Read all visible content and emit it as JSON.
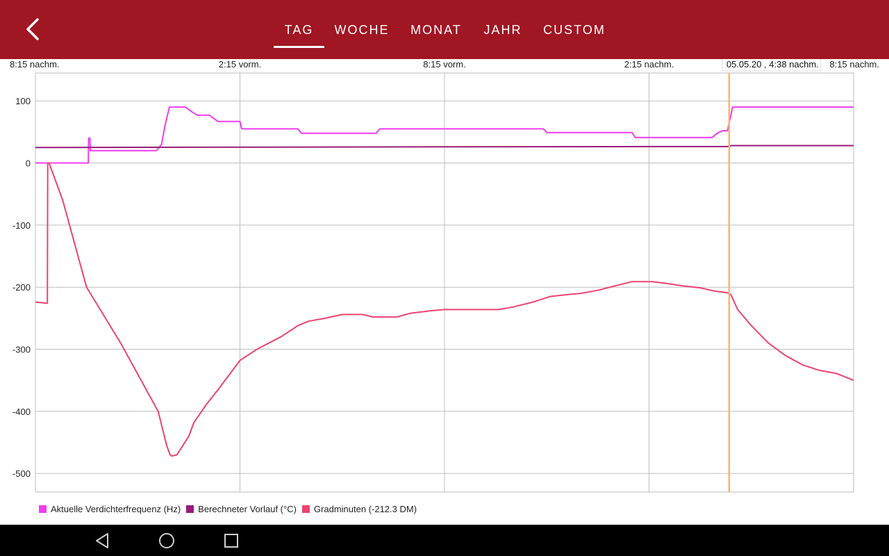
{
  "app_bar": {
    "back_icon": "chevron-left-icon",
    "tabs": [
      {
        "label": "TAG",
        "active": true
      },
      {
        "label": "WOCHE",
        "active": false
      },
      {
        "label": "MONAT",
        "active": false
      },
      {
        "label": "JAHR",
        "active": false
      },
      {
        "label": "CUSTOM",
        "active": false
      }
    ]
  },
  "colors": {
    "appbar": "#a01622",
    "series_frequency": "#f03cf0",
    "series_vorlauf": "#9b1a7a",
    "series_gradminuten": "#ec4370",
    "cursor": "#ffb366",
    "grid": "#bdbdbd"
  },
  "chart_data": {
    "type": "line",
    "x_ticks": [
      "8:15 nachm.",
      "2:15 vorm.",
      "8:15 vorm.",
      "2:15 nachm.",
      "8:15 nachm."
    ],
    "x_range_hours": [
      0,
      24
    ],
    "ylim": [
      -530,
      145
    ],
    "y_ticks": [
      100,
      0,
      -100,
      -200,
      -300,
      -400,
      -500
    ],
    "grid": true,
    "legend_position": "bottom-left",
    "cursor": {
      "x": 20.35,
      "label": "05.05.20 , 4:38 nachm."
    },
    "series": [
      {
        "name": "Aktuelle Verdichterfrequenz (Hz)",
        "color": "#f03cf0",
        "points": [
          [
            0,
            0
          ],
          [
            1.55,
            0
          ],
          [
            1.56,
            40
          ],
          [
            1.6,
            40
          ],
          [
            1.61,
            20
          ],
          [
            3.55,
            20
          ],
          [
            3.7,
            30
          ],
          [
            3.8,
            60
          ],
          [
            3.93,
            90
          ],
          [
            4.4,
            90
          ],
          [
            4.6,
            82
          ],
          [
            4.75,
            77
          ],
          [
            5.1,
            77
          ],
          [
            5.35,
            67
          ],
          [
            6,
            67
          ],
          [
            6.05,
            55
          ],
          [
            7.7,
            55
          ],
          [
            7.8,
            48
          ],
          [
            10,
            48
          ],
          [
            10.1,
            55
          ],
          [
            14.9,
            55
          ],
          [
            15,
            49
          ],
          [
            17.5,
            49
          ],
          [
            17.6,
            41
          ],
          [
            19.85,
            41
          ],
          [
            20,
            48
          ],
          [
            20.15,
            52
          ],
          [
            20.3,
            52
          ],
          [
            20.45,
            90
          ],
          [
            24,
            90
          ]
        ]
      },
      {
        "name": "Berechneter Vorlauf (°C)",
        "color": "#9b1a7a",
        "points": [
          [
            0,
            25
          ],
          [
            6,
            25.5
          ],
          [
            12,
            26
          ],
          [
            18,
            26.5
          ],
          [
            20.3,
            26.5
          ],
          [
            20.4,
            28
          ],
          [
            24,
            28
          ]
        ]
      },
      {
        "name": "Gradminuten (-212.3 DM)",
        "color": "#ec4370",
        "points": [
          [
            0,
            -224
          ],
          [
            0.35,
            -226
          ],
          [
            0.36,
            0
          ],
          [
            0.4,
            0
          ],
          [
            0.8,
            -60
          ],
          [
            1.5,
            -200
          ],
          [
            2.5,
            -290
          ],
          [
            3.6,
            -400
          ],
          [
            3.85,
            -455
          ],
          [
            3.95,
            -470
          ],
          [
            4,
            -472
          ],
          [
            4.15,
            -470
          ],
          [
            4.5,
            -440
          ],
          [
            4.65,
            -418
          ],
          [
            5,
            -390
          ],
          [
            5.4,
            -362
          ],
          [
            6,
            -318
          ],
          [
            6.5,
            -300
          ],
          [
            7.2,
            -280
          ],
          [
            7.7,
            -262
          ],
          [
            8,
            -255
          ],
          [
            8.5,
            -250
          ],
          [
            9,
            -244
          ],
          [
            9.6,
            -244
          ],
          [
            9.9,
            -248
          ],
          [
            10.6,
            -248
          ],
          [
            11,
            -242
          ],
          [
            11.6,
            -238
          ],
          [
            12,
            -236
          ],
          [
            13.6,
            -236
          ],
          [
            14,
            -232
          ],
          [
            14.6,
            -224
          ],
          [
            15.1,
            -215
          ],
          [
            15.6,
            -212
          ],
          [
            16,
            -210
          ],
          [
            16.5,
            -205
          ],
          [
            17,
            -198
          ],
          [
            17.5,
            -191
          ],
          [
            18.1,
            -191
          ],
          [
            18.5,
            -194
          ],
          [
            19,
            -198
          ],
          [
            19.5,
            -201
          ],
          [
            19.9,
            -206
          ],
          [
            20.3,
            -209
          ],
          [
            20.4,
            -212
          ],
          [
            20.6,
            -236
          ],
          [
            21.0,
            -262
          ],
          [
            21.5,
            -290
          ],
          [
            22,
            -310
          ],
          [
            22.5,
            -325
          ],
          [
            23,
            -334
          ],
          [
            23.5,
            -339
          ],
          [
            24,
            -350
          ]
        ]
      }
    ]
  },
  "legend": {
    "items": [
      {
        "label": "Aktuelle Verdichterfrequenz (Hz)",
        "color": "#f03cf0"
      },
      {
        "label": "Berechneter Vorlauf (°C)",
        "color": "#9b1a7a"
      },
      {
        "label": "Gradminuten (-212.3 DM)",
        "color": "#ec4370"
      }
    ]
  },
  "system_nav": {
    "back": "triangle-back-icon",
    "home": "circle-home-icon",
    "recents": "square-recents-icon"
  }
}
